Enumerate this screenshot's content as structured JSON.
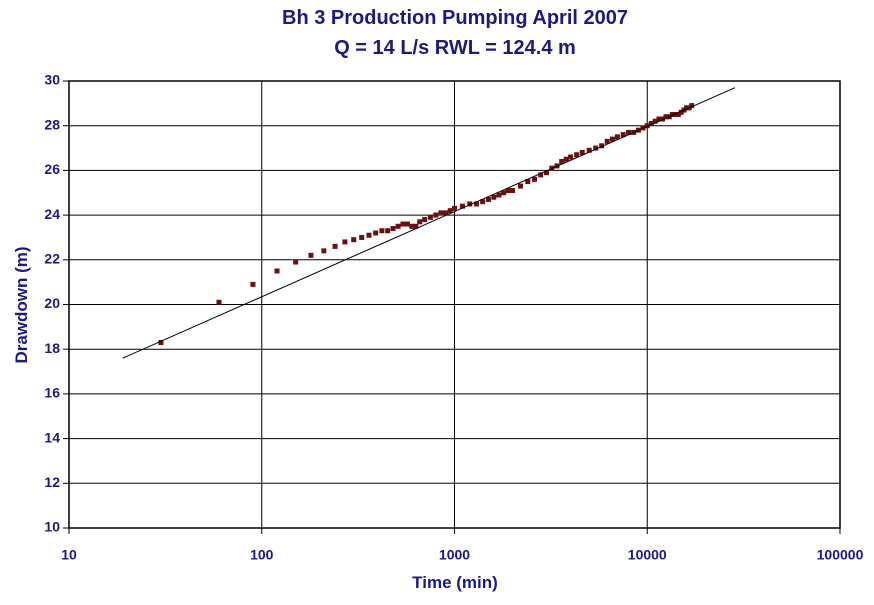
{
  "chart_data": {
    "type": "scatter",
    "title": "Bh 3 Production Pumping April 2007",
    "subtitle": "Q = 14 L/s    RWL =  124.4 m",
    "x_label": "Time (min)",
    "y_label": "Drawdown (m)",
    "log_x": true,
    "grid": true,
    "xlim": [
      10,
      100000
    ],
    "xticks": [
      10,
      100,
      1000,
      10000,
      100000
    ],
    "ylim": [
      10,
      30
    ],
    "yticks": [
      10,
      12,
      14,
      16,
      18,
      20,
      22,
      24,
      26,
      28,
      30
    ],
    "series": [
      {
        "mode": "markers",
        "color": "#6b1010",
        "x": [
          30,
          60,
          90,
          120,
          150,
          180,
          210,
          240,
          270,
          300,
          330,
          360,
          390,
          420,
          450,
          480,
          510,
          540,
          570,
          600,
          630,
          660,
          700,
          750,
          800,
          850,
          900,
          950,
          1000,
          1100,
          1200,
          1300,
          1400,
          1500,
          1600,
          1700,
          1800,
          1900,
          2000,
          2200,
          2400,
          2600,
          2800,
          3000,
          3200,
          3400,
          3600,
          3800,
          4000,
          4300,
          4600,
          5000,
          5400,
          5800,
          6200,
          6600,
          7000,
          7500,
          8000,
          8500,
          9000,
          9500,
          10000,
          10500,
          11000,
          11500,
          12000,
          12500,
          13000,
          13500,
          14000,
          14500,
          15000,
          15500,
          16000,
          16500,
          17000
        ],
        "values": [
          18.3,
          20.1,
          20.9,
          21.5,
          21.9,
          22.2,
          22.4,
          22.6,
          22.8,
          22.9,
          23.0,
          23.1,
          23.2,
          23.3,
          23.3,
          23.4,
          23.5,
          23.6,
          23.6,
          23.5,
          23.5,
          23.7,
          23.8,
          23.9,
          24.0,
          24.1,
          24.1,
          24.2,
          24.3,
          24.4,
          24.5,
          24.5,
          24.6,
          24.7,
          24.8,
          24.9,
          25.0,
          25.1,
          25.1,
          25.3,
          25.5,
          25.6,
          25.8,
          25.9,
          26.1,
          26.2,
          26.4,
          26.5,
          26.6,
          26.7,
          26.8,
          26.9,
          27.0,
          27.1,
          27.3,
          27.4,
          27.5,
          27.6,
          27.7,
          27.7,
          27.8,
          27.9,
          28.0,
          28.1,
          28.2,
          28.3,
          28.3,
          28.4,
          28.4,
          28.5,
          28.5,
          28.5,
          28.6,
          28.7,
          28.8,
          28.8,
          28.9
        ]
      },
      {
        "mode": "line",
        "color": "#000000",
        "x": [
          19,
          28500
        ],
        "values": [
          17.6,
          29.7
        ]
      }
    ]
  }
}
